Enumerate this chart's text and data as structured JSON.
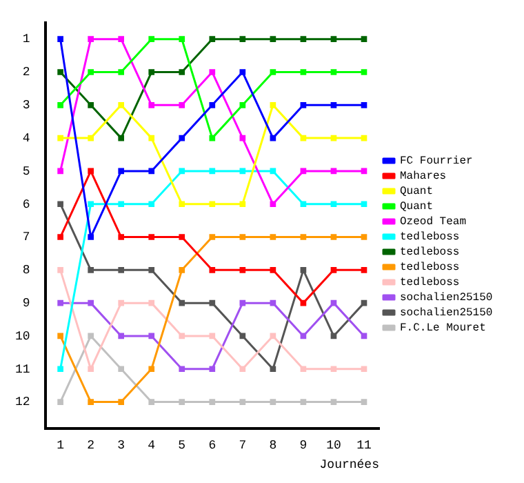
{
  "chart_data": {
    "type": "line",
    "xlabel": "Journées",
    "x": [
      1,
      2,
      3,
      4,
      5,
      6,
      7,
      8,
      9,
      10,
      11
    ],
    "xlim": [
      0.5,
      11.5
    ],
    "xticks": [
      1,
      2,
      3,
      4,
      5,
      6,
      7,
      8,
      9,
      10,
      11
    ],
    "ylim": [
      12.8,
      0.5
    ],
    "yticks": [
      1,
      2,
      3,
      4,
      5,
      6,
      7,
      8,
      9,
      10,
      11,
      12
    ],
    "grid": false,
    "legend": "right",
    "marker": "square",
    "line_style": "solid",
    "series": [
      {
        "name": "FC Fourrier",
        "color": "#0000ff",
        "values": [
          1,
          7,
          5,
          5,
          4,
          3,
          2,
          4,
          3,
          3,
          3
        ]
      },
      {
        "name": "Mahares",
        "color": "#ff0000",
        "values": [
          7,
          5,
          7,
          7,
          7,
          8,
          8,
          8,
          9,
          8,
          8
        ]
      },
      {
        "name": "Quant",
        "color": "#ffff00",
        "values": [
          4,
          4,
          3,
          4,
          6,
          6,
          6,
          3,
          4,
          4,
          4
        ]
      },
      {
        "name": "Quant",
        "color": "#00ff00",
        "values": [
          3,
          2,
          2,
          1,
          1,
          4,
          3,
          2,
          2,
          2,
          2
        ]
      },
      {
        "name": "Ozeod Team",
        "color": "#ff00ff",
        "values": [
          5,
          1,
          1,
          3,
          3,
          2,
          4,
          6,
          5,
          5,
          5
        ]
      },
      {
        "name": "tedleboss",
        "color": "#00ffff",
        "values": [
          11,
          6,
          6,
          6,
          5,
          5,
          5,
          5,
          6,
          6,
          6
        ]
      },
      {
        "name": "tedleboss",
        "color": "#006400",
        "values": [
          2,
          3,
          4,
          2,
          2,
          1,
          1,
          1,
          1,
          1,
          1
        ]
      },
      {
        "name": "tedleboss",
        "color": "#ff9900",
        "values": [
          10,
          12,
          12,
          11,
          8,
          7,
          7,
          7,
          7,
          7,
          7
        ]
      },
      {
        "name": "tedleboss",
        "color": "#ffc0c0",
        "values": [
          8,
          11,
          9,
          9,
          10,
          10,
          11,
          10,
          11,
          11,
          11
        ]
      },
      {
        "name": "sochalien25150",
        "color": "#a050f0",
        "values": [
          9,
          9,
          10,
          10,
          11,
          11,
          9,
          9,
          10,
          9,
          10
        ]
      },
      {
        "name": "sochalien25150",
        "color": "#555555",
        "values": [
          6,
          8,
          8,
          8,
          9,
          9,
          10,
          11,
          8,
          10,
          9
        ]
      },
      {
        "name": "F.C.Le Mouret",
        "color": "#c0c0c0",
        "values": [
          12,
          10,
          11,
          12,
          12,
          12,
          12,
          12,
          12,
          12,
          12
        ]
      }
    ]
  }
}
